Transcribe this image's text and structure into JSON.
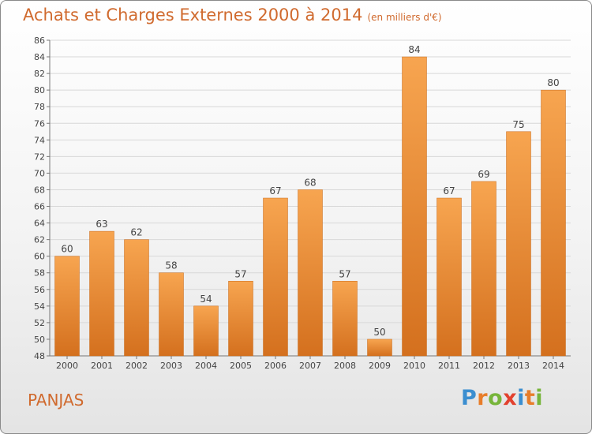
{
  "header": {
    "title": "Achats et Charges Externes 2000 à 2014",
    "unit": "(en milliers d'€)"
  },
  "footer": {
    "commune": "PANJAS",
    "brand": "Proxiti",
    "brand_letters": [
      {
        "ch": "P",
        "color": "#3b8ed0"
      },
      {
        "ch": "r",
        "color": "#e87d2a"
      },
      {
        "ch": "o",
        "color": "#77b53b"
      },
      {
        "ch": "x",
        "color": "#e2412e"
      },
      {
        "ch": "i",
        "color": "#3b8ed0"
      },
      {
        "ch": "t",
        "color": "#e87d2a"
      },
      {
        "ch": "i",
        "color": "#77b53b"
      }
    ]
  },
  "colors": {
    "accent": "#d06a2e",
    "bar_top": "#f7a550",
    "bar_bottom": "#d4701e",
    "grid": "#d8d8d8"
  },
  "chart_data": {
    "type": "bar",
    "title": "Achats et Charges Externes 2000 à 2014",
    "xlabel": "",
    "ylabel": "",
    "categories": [
      "2000",
      "2001",
      "2002",
      "2003",
      "2004",
      "2005",
      "2006",
      "2007",
      "2008",
      "2009",
      "2010",
      "2011",
      "2012",
      "2013",
      "2014"
    ],
    "values": [
      60,
      63,
      62,
      58,
      54,
      57,
      67,
      68,
      57,
      50,
      84,
      67,
      69,
      75,
      80
    ],
    "ylim": [
      48,
      86
    ],
    "yticks": [
      48,
      50,
      52,
      54,
      56,
      58,
      60,
      62,
      64,
      66,
      68,
      70,
      72,
      74,
      76,
      78,
      80,
      82,
      84,
      86
    ],
    "grid": true
  }
}
